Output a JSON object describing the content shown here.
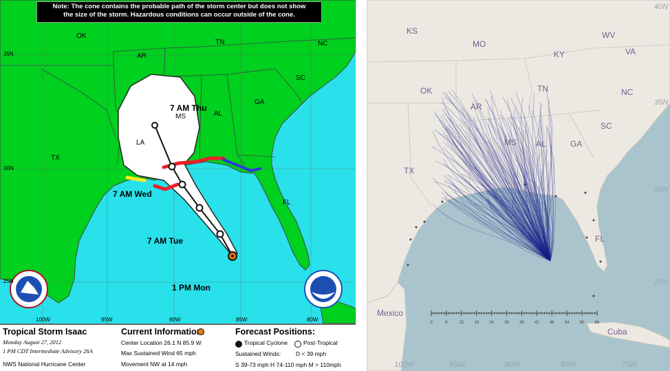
{
  "left_map": {
    "note": [
      "Note: The cone contains the probable path of the storm center but does not show",
      "the size of the storm. Hazardous conditions can occur outside of the cone."
    ],
    "states": {
      "ok": "OK",
      "ar": "AR",
      "tn": "TN",
      "nc": "NC",
      "sc": "SC",
      "ga": "GA",
      "al": "AL",
      "ms": "MS",
      "la": "LA",
      "tx": "TX",
      "fl": "FL"
    },
    "lat_labels": {
      "n35": "35N",
      "n30": "30N",
      "n25": "25N"
    },
    "lon_labels": {
      "w100": "100W",
      "w95": "95W",
      "w90": "90W",
      "w85": "85W",
      "w80": "80W"
    },
    "forecast_labels": {
      "thu": "7 AM Thu",
      "wed": "7 AM Wed",
      "tue": "7 AM Tue",
      "mon": "1 PM Mon"
    },
    "info": {
      "title": "Tropical Storm Isaac",
      "date": "Monday   August 27, 2012",
      "advisory": "1 PM CDT Intermediate Advisory 26A",
      "center": "NWS National Hurricane Center",
      "current_heading": "Current Information:",
      "center_location": "Center Location 26.1 N  85.9 W",
      "max_wind": "Max Sustained Wind  65 mph",
      "movement": "Movement NW at  14 mph",
      "forecast_heading": "Forecast Positions:",
      "tropical": "Tropical Cyclone",
      "post_tropical": "Post-Tropical",
      "sustained_label": "Sustained Winds:",
      "d_range": "D  < 39 mph",
      "ranges": "S  39-73 mph  H  74-110 mph  M  > 110mph"
    },
    "colors": {
      "land": "#00d01e",
      "water": "#29e1ea",
      "cone": "#ffffff",
      "warning_red": "#e8202a",
      "watch_yellow": "#f4ee20",
      "blue_watch": "#2b3ad8"
    }
  },
  "right_map": {
    "states": {
      "ks": "KS",
      "mo": "MO",
      "ky": "KY",
      "wv": "WV",
      "va": "VA",
      "ok": "OK",
      "tn": "TN",
      "nc": "NC",
      "ar": "AR",
      "sc": "SC",
      "ms": "MS",
      "al": "AL",
      "ga": "GA",
      "tx": "TX",
      "fl": "FL"
    },
    "countries": {
      "mexico": "Mexico",
      "cuba": "Cuba"
    },
    "lat_labels": {
      "n40": "40N",
      "n35": "35N",
      "n30": "30N",
      "n25": "25N"
    },
    "lon_labels": {
      "w100": "100W",
      "w95": "95W",
      "w90": "90W",
      "w85": "85W",
      "w75": "75W"
    },
    "scale_ticks": [
      "0",
      "6",
      "12",
      "18",
      "24",
      "30",
      "36",
      "42",
      "48",
      "54",
      "60",
      "66"
    ],
    "colors": {
      "land": "#ece9e3",
      "water": "#a9c4cc",
      "tracks": "#1a1f8a"
    }
  }
}
